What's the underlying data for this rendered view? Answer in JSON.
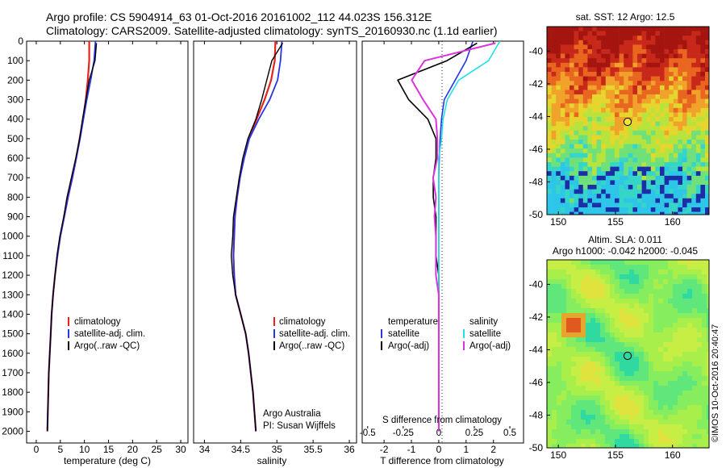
{
  "header": {
    "title_line1": "Argo profile: CS 5904914_63 01-Oct-2016 20161002_112 44.023S 156.312E",
    "title_line2": "Climatology: CARS2009. Satellite-adjusted climatology: synTS_20160930.nc (1.1d earlier)"
  },
  "colors": {
    "climatology": "#e8221c",
    "satellite": "#2a36e6",
    "argo": "#000000",
    "argo_adj": "#dd33dd",
    "satellite_diff": "#22e0e8"
  },
  "y_axis": {
    "ticks": [
      "0",
      "100",
      "200",
      "300",
      "400",
      "500",
      "600",
      "700",
      "800",
      "900",
      "1000",
      "1100",
      "1200",
      "1300",
      "1400",
      "1500",
      "1600",
      "1700",
      "1800",
      "1900",
      "2000"
    ]
  },
  "panel_temp": {
    "xlabel": "temperature (deg C)",
    "xticks": [
      "0",
      "5",
      "10",
      "15",
      "20",
      "25",
      "30"
    ],
    "legend": [
      "climatology",
      "satellite-adj. clim.",
      "Argo(..raw -QC)"
    ]
  },
  "panel_sal": {
    "xlabel": "salinity",
    "xticks": [
      "34",
      "34.5",
      "35",
      "35.5",
      "36"
    ],
    "legend": [
      "climatology",
      "satellite-adj. clim.",
      "Argo(..raw -QC)"
    ],
    "note1": "Argo Australia",
    "note2": "PI: Susan Wijffels"
  },
  "panel_diff": {
    "xlabel": "T difference from climatology",
    "xticks": [
      "-2",
      "-1",
      "0",
      "1",
      "2"
    ],
    "top_label": "S difference from climatology",
    "s_ticks": [
      "-0.5",
      "-0.25",
      "0",
      "0.25",
      "0.5"
    ],
    "legend_temp_title": "temperature",
    "legend_sal_title": "salinity",
    "legend_temp": [
      "satellite",
      "Argo(-adj)"
    ],
    "legend_sal": [
      "satellite",
      "Argo(-adj)"
    ]
  },
  "map_sst": {
    "title": "sat. SST: 12 Argo: 12.5",
    "yticks": [
      "-40",
      "-42",
      "-44",
      "-46",
      "-48",
      "-50"
    ],
    "xticks": [
      "150",
      "155",
      "160"
    ]
  },
  "map_sla": {
    "title1": "Altim. SLA: 0.011",
    "title2": "Argo h1000: -0.042 h2000: -0.045",
    "yticks": [
      "-40",
      "-42",
      "-44",
      "-46",
      "-48",
      "-50"
    ],
    "xticks": [
      "150",
      "155",
      "160"
    ]
  },
  "credit": "©IMOS 10-Oct-2016 20:40:47",
  "chart_data": [
    {
      "type": "line",
      "name": "temperature profile",
      "xlabel": "temperature (deg C)",
      "ylabel": "",
      "xlim": [
        -2,
        31.5
      ],
      "ylim": [
        2060,
        0
      ],
      "grid": false,
      "legend_position": "lower-left",
      "series": [
        {
          "name": "climatology",
          "x": [
            11.0,
            11.0,
            10.7,
            10.3,
            9.7,
            9.0,
            8.3,
            7.5,
            6.6,
            5.8,
            5.0,
            4.4,
            3.9,
            3.5,
            3.2,
            3.0,
            2.8,
            2.6,
            2.5,
            2.4,
            2.3
          ],
          "y": [
            0,
            100,
            200,
            300,
            400,
            500,
            600,
            700,
            800,
            900,
            1000,
            1100,
            1200,
            1300,
            1400,
            1500,
            1600,
            1700,
            1800,
            1900,
            2000
          ]
        },
        {
          "name": "satellite-adj. clim.",
          "x": [
            12.3,
            12.0,
            11.3,
            10.5,
            9.8,
            9.1,
            8.3,
            7.5,
            6.6,
            5.8,
            5.0,
            4.4,
            3.9,
            3.5,
            3.2,
            3.0,
            2.8,
            2.6,
            2.5,
            2.4,
            2.3
          ],
          "y": [
            0,
            100,
            200,
            300,
            400,
            500,
            600,
            700,
            800,
            900,
            1000,
            1100,
            1200,
            1300,
            1400,
            1500,
            1600,
            1700,
            1800,
            1900,
            2000
          ]
        },
        {
          "name": "Argo(..raw -QC)",
          "x": [
            12.5,
            12.2,
            11.0,
            10.3,
            9.6,
            9.0,
            8.2,
            7.3,
            6.4,
            5.7,
            4.9,
            4.3,
            3.9,
            3.5,
            3.2,
            3.0,
            2.8,
            2.6,
            2.5,
            2.4,
            2.3
          ],
          "y": [
            10,
            100,
            200,
            300,
            400,
            500,
            600,
            700,
            800,
            900,
            1000,
            1100,
            1200,
            1300,
            1400,
            1500,
            1600,
            1700,
            1800,
            1900,
            2000
          ]
        }
      ]
    },
    {
      "type": "line",
      "name": "salinity profile",
      "xlabel": "salinity",
      "ylabel": "",
      "xlim": [
        33.85,
        36.1
      ],
      "ylim": [
        2060,
        0
      ],
      "grid": false,
      "legend_position": "lower-right",
      "series": [
        {
          "name": "climatology",
          "x": [
            34.98,
            34.97,
            34.92,
            34.83,
            34.72,
            34.61,
            34.54,
            34.49,
            34.45,
            34.42,
            34.41,
            34.4,
            34.41,
            34.43,
            34.5,
            34.57,
            34.61,
            34.64,
            34.67,
            34.69,
            34.71
          ],
          "y": [
            0,
            100,
            200,
            300,
            400,
            500,
            600,
            700,
            800,
            900,
            1000,
            1100,
            1200,
            1300,
            1400,
            1500,
            1600,
            1700,
            1800,
            1900,
            2000
          ]
        },
        {
          "name": "satellite-adj. clim.",
          "x": [
            35.07,
            35.05,
            35.01,
            34.9,
            34.75,
            34.62,
            34.55,
            34.49,
            34.45,
            34.42,
            34.41,
            34.4,
            34.41,
            34.43,
            34.5,
            34.57,
            34.61,
            34.64,
            34.67,
            34.69,
            34.71
          ],
          "y": [
            0,
            100,
            200,
            300,
            400,
            500,
            600,
            700,
            800,
            900,
            1000,
            1100,
            1200,
            1300,
            1400,
            1500,
            1600,
            1700,
            1800,
            1900,
            2000
          ]
        },
        {
          "name": "Argo(..raw -QC)",
          "x": [
            35.08,
            34.93,
            34.86,
            34.79,
            34.71,
            34.6,
            34.53,
            34.48,
            34.44,
            34.4,
            34.39,
            34.37,
            34.39,
            34.43,
            34.5,
            34.57,
            34.61,
            34.64,
            34.67,
            34.69,
            34.71
          ],
          "y": [
            10,
            100,
            200,
            300,
            400,
            500,
            600,
            700,
            800,
            900,
            1000,
            1100,
            1200,
            1300,
            1400,
            1500,
            1600,
            1700,
            1800,
            1900,
            2000
          ]
        }
      ]
    },
    {
      "type": "line",
      "name": "difference from climatology",
      "xlabel": "T difference from climatology",
      "ylabel": "",
      "xlim": [
        -2.8,
        3.1
      ],
      "ylim": [
        2060,
        0
      ],
      "grid": false,
      "legend_position": "lower-center",
      "series": [
        {
          "name": "temperature satellite",
          "x": [
            1.25,
            1.0,
            0.6,
            0.2,
            0.1,
            0.05,
            0.02,
            0.0,
            0.0,
            0.0,
            0.0,
            0.0,
            0.0,
            0.0,
            0.0,
            0.0,
            0.0,
            0.0,
            0.0,
            0.0,
            0.0
          ],
          "y": [
            0,
            100,
            200,
            300,
            400,
            500,
            600,
            700,
            800,
            900,
            1000,
            1100,
            1200,
            1300,
            1400,
            1500,
            1600,
            1700,
            1800,
            1900,
            2000
          ]
        },
        {
          "name": "temperature Argo(-adj)",
          "x": [
            1.4,
            0.3,
            -1.5,
            -1.1,
            -0.4,
            -0.1,
            -0.1,
            -0.2,
            -0.2,
            -0.1,
            -0.1,
            -0.1,
            0.0,
            0.0,
            0.0,
            0.0,
            0.0,
            0.0,
            0.0,
            0.0,
            0.0
          ],
          "y": [
            10,
            100,
            200,
            300,
            400,
            500,
            600,
            700,
            800,
            900,
            1000,
            1100,
            1200,
            1300,
            1400,
            1500,
            1600,
            1700,
            1800,
            1900,
            2000
          ]
        },
        {
          "name": "salinity satellite",
          "x": [
            0.43,
            0.35,
            0.14,
            0.06,
            0.03,
            0.02,
            0.0,
            0.0,
            0.0,
            0.0,
            0.0,
            0.0,
            0.0,
            0.0,
            0.0,
            0.0,
            0.0,
            0.0,
            0.0,
            0.0,
            0.0
          ],
          "y": [
            0,
            100,
            200,
            300,
            400,
            500,
            600,
            700,
            800,
            900,
            1000,
            1100,
            1200,
            1300,
            1400,
            1500,
            1600,
            1700,
            1800,
            1900,
            2000
          ]
        },
        {
          "name": "salinity Argo(-adj)",
          "x": [
            0.4,
            -0.1,
            -0.19,
            -0.11,
            -0.02,
            -0.01,
            -0.01,
            -0.04,
            -0.02,
            -0.03,
            -0.02,
            -0.02,
            -0.02,
            0.0,
            0.0,
            0.0,
            0.0,
            0.0,
            0.0,
            0.0,
            0.0
          ],
          "y": [
            10,
            100,
            200,
            300,
            400,
            500,
            600,
            700,
            800,
            900,
            1000,
            1100,
            1200,
            1300,
            1400,
            1500,
            1600,
            1700,
            1800,
            1900,
            2000
          ]
        }
      ]
    },
    {
      "type": "heatmap",
      "name": "satellite SST map",
      "title": "sat. SST: 12 Argo: 12.5",
      "xlim": [
        149,
        163.2
      ],
      "ylim": [
        -50,
        -38.5
      ],
      "marker": {
        "lon": 156.312,
        "lat": -44.023
      }
    },
    {
      "type": "heatmap",
      "name": "altimetry SLA map",
      "title": "Altim. SLA: 0.011",
      "xlim": [
        149,
        163.2
      ],
      "ylim": [
        -50,
        -38.5
      ],
      "marker": {
        "lon": 156.312,
        "lat": -44.023
      }
    }
  ]
}
